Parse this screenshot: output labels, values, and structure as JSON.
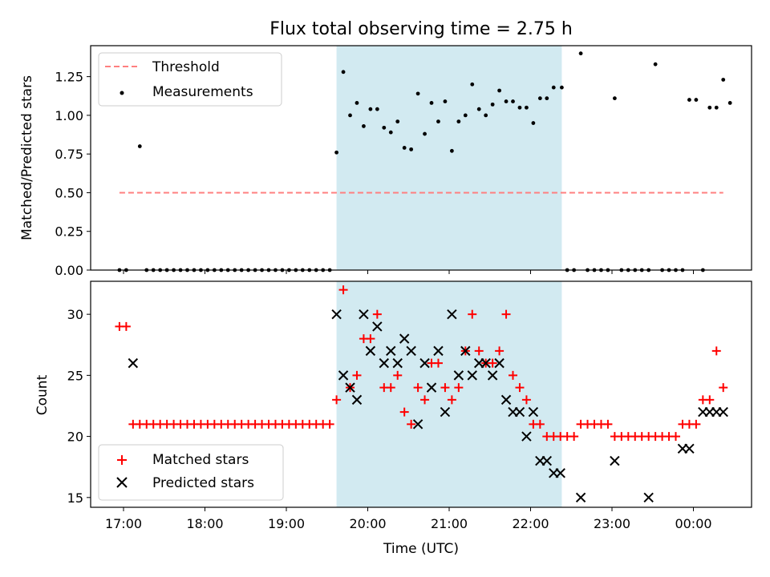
{
  "title": "Flux total observing time = 2.75 h",
  "xlabel": "Time (UTC)",
  "x_ticks": [
    "17:00",
    "18:00",
    "19:00",
    "20:00",
    "21:00",
    "22:00",
    "23:00",
    "00:00"
  ],
  "highlight_span": [
    "19:37",
    "22:23"
  ],
  "colors": {
    "threshold": "#ff7f7f",
    "span": "#add8e6",
    "matched": "#ff0000",
    "predicted": "#000000"
  },
  "chart_data": [
    {
      "type": "scatter",
      "ylabel": "Matched/Predicted stars",
      "ylim": [
        0,
        1.45
      ],
      "y_ticks": [
        "0.00",
        "0.25",
        "0.50",
        "0.75",
        "1.00",
        "1.25"
      ],
      "legend": {
        "placement": "upper-left",
        "entries": [
          "Threshold",
          "Measurements"
        ]
      },
      "threshold": {
        "name": "Threshold",
        "value": 0.5,
        "x_range": [
          "16:57",
          "00:22"
        ]
      },
      "series": [
        {
          "name": "Measurements",
          "points": [
            [
              "16:57",
              0
            ],
            [
              "17:02",
              0
            ],
            [
              "17:12",
              0.8
            ],
            [
              "17:17",
              0
            ],
            [
              "17:22",
              0
            ],
            [
              "17:27",
              0
            ],
            [
              "17:32",
              0
            ],
            [
              "17:37",
              0
            ],
            [
              "17:42",
              0
            ],
            [
              "17:47",
              0
            ],
            [
              "17:52",
              0
            ],
            [
              "17:57",
              0
            ],
            [
              "18:02",
              0
            ],
            [
              "18:07",
              0
            ],
            [
              "18:12",
              0
            ],
            [
              "18:17",
              0
            ],
            [
              "18:22",
              0
            ],
            [
              "18:27",
              0
            ],
            [
              "18:32",
              0
            ],
            [
              "18:37",
              0
            ],
            [
              "18:42",
              0
            ],
            [
              "18:47",
              0
            ],
            [
              "18:52",
              0
            ],
            [
              "18:57",
              0
            ],
            [
              "19:02",
              0
            ],
            [
              "19:07",
              0
            ],
            [
              "19:12",
              0
            ],
            [
              "19:17",
              0
            ],
            [
              "19:22",
              0
            ],
            [
              "19:27",
              0
            ],
            [
              "19:32",
              0
            ],
            [
              "19:37",
              0.76
            ],
            [
              "19:42",
              1.28
            ],
            [
              "19:47",
              1.0
            ],
            [
              "19:52",
              1.08
            ],
            [
              "19:57",
              0.93
            ],
            [
              "20:02",
              1.04
            ],
            [
              "20:07",
              1.04
            ],
            [
              "20:12",
              0.92
            ],
            [
              "20:17",
              0.89
            ],
            [
              "20:22",
              0.96
            ],
            [
              "20:27",
              0.79
            ],
            [
              "20:32",
              0.78
            ],
            [
              "20:37",
              1.14
            ],
            [
              "20:42",
              0.88
            ],
            [
              "20:47",
              1.08
            ],
            [
              "20:52",
              0.96
            ],
            [
              "20:57",
              1.09
            ],
            [
              "21:02",
              0.77
            ],
            [
              "21:07",
              0.96
            ],
            [
              "21:12",
              1.0
            ],
            [
              "21:17",
              1.2
            ],
            [
              "21:22",
              1.04
            ],
            [
              "21:27",
              1.0
            ],
            [
              "21:32",
              1.07
            ],
            [
              "21:37",
              1.16
            ],
            [
              "21:42",
              1.09
            ],
            [
              "21:47",
              1.09
            ],
            [
              "21:52",
              1.05
            ],
            [
              "21:57",
              1.05
            ],
            [
              "22:02",
              0.95
            ],
            [
              "22:07",
              1.11
            ],
            [
              "22:12",
              1.11
            ],
            [
              "22:17",
              1.18
            ],
            [
              "22:23",
              1.18
            ],
            [
              "22:27",
              0
            ],
            [
              "22:32",
              0
            ],
            [
              "22:37",
              1.4
            ],
            [
              "22:42",
              0
            ],
            [
              "22:47",
              0
            ],
            [
              "22:52",
              0
            ],
            [
              "22:57",
              0
            ],
            [
              "23:02",
              1.11
            ],
            [
              "23:07",
              0
            ],
            [
              "23:12",
              0
            ],
            [
              "23:17",
              0
            ],
            [
              "23:22",
              0
            ],
            [
              "23:27",
              0
            ],
            [
              "23:32",
              1.33
            ],
            [
              "23:37",
              0
            ],
            [
              "23:42",
              0
            ],
            [
              "23:47",
              0
            ],
            [
              "23:52",
              0
            ],
            [
              "23:57",
              1.1
            ],
            [
              "00:02",
              1.1
            ],
            [
              "00:07",
              0
            ],
            [
              "00:12",
              1.05
            ],
            [
              "00:17",
              1.05
            ],
            [
              "00:22",
              1.23
            ],
            [
              "00:27",
              1.08
            ]
          ]
        }
      ]
    },
    {
      "type": "scatter",
      "ylabel": "Count",
      "ylim": [
        14.2,
        32.7
      ],
      "y_ticks": [
        "15",
        "20",
        "25",
        "30"
      ],
      "legend": {
        "placement": "lower-left",
        "entries": [
          "Matched stars",
          "Predicted stars"
        ]
      },
      "series": [
        {
          "name": "Matched stars",
          "points": [
            [
              "16:57",
              29
            ],
            [
              "17:02",
              29
            ],
            [
              "17:07",
              21
            ],
            [
              "17:12",
              21
            ],
            [
              "17:17",
              21
            ],
            [
              "17:22",
              21
            ],
            [
              "17:27",
              21
            ],
            [
              "17:32",
              21
            ],
            [
              "17:37",
              21
            ],
            [
              "17:42",
              21
            ],
            [
              "17:47",
              21
            ],
            [
              "17:52",
              21
            ],
            [
              "17:57",
              21
            ],
            [
              "18:02",
              21
            ],
            [
              "18:07",
              21
            ],
            [
              "18:12",
              21
            ],
            [
              "18:17",
              21
            ],
            [
              "18:22",
              21
            ],
            [
              "18:27",
              21
            ],
            [
              "18:32",
              21
            ],
            [
              "18:37",
              21
            ],
            [
              "18:42",
              21
            ],
            [
              "18:47",
              21
            ],
            [
              "18:52",
              21
            ],
            [
              "18:57",
              21
            ],
            [
              "19:02",
              21
            ],
            [
              "19:07",
              21
            ],
            [
              "19:12",
              21
            ],
            [
              "19:17",
              21
            ],
            [
              "19:22",
              21
            ],
            [
              "19:27",
              21
            ],
            [
              "19:32",
              21
            ],
            [
              "19:37",
              23
            ],
            [
              "19:42",
              32
            ],
            [
              "19:47",
              24
            ],
            [
              "19:52",
              25
            ],
            [
              "19:57",
              28
            ],
            [
              "20:02",
              28
            ],
            [
              "20:07",
              30
            ],
            [
              "20:12",
              24
            ],
            [
              "20:17",
              24
            ],
            [
              "20:22",
              25
            ],
            [
              "20:27",
              22
            ],
            [
              "20:32",
              21
            ],
            [
              "20:37",
              24
            ],
            [
              "20:42",
              23
            ],
            [
              "20:47",
              26
            ],
            [
              "20:52",
              26
            ],
            [
              "20:57",
              24
            ],
            [
              "21:02",
              23
            ],
            [
              "21:07",
              24
            ],
            [
              "21:12",
              27
            ],
            [
              "21:17",
              30
            ],
            [
              "21:22",
              27
            ],
            [
              "21:27",
              26
            ],
            [
              "21:32",
              26
            ],
            [
              "21:37",
              27
            ],
            [
              "21:42",
              30
            ],
            [
              "21:47",
              25
            ],
            [
              "21:52",
              24
            ],
            [
              "21:57",
              23
            ],
            [
              "22:02",
              21
            ],
            [
              "22:07",
              21
            ],
            [
              "22:12",
              20
            ],
            [
              "22:17",
              20
            ],
            [
              "22:22",
              20
            ],
            [
              "22:27",
              20
            ],
            [
              "22:32",
              20
            ],
            [
              "22:37",
              21
            ],
            [
              "22:42",
              21
            ],
            [
              "22:47",
              21
            ],
            [
              "22:52",
              21
            ],
            [
              "22:57",
              21
            ],
            [
              "23:02",
              20
            ],
            [
              "23:07",
              20
            ],
            [
              "23:12",
              20
            ],
            [
              "23:17",
              20
            ],
            [
              "23:22",
              20
            ],
            [
              "23:27",
              20
            ],
            [
              "23:32",
              20
            ],
            [
              "23:37",
              20
            ],
            [
              "23:42",
              20
            ],
            [
              "23:47",
              20
            ],
            [
              "23:52",
              21
            ],
            [
              "23:57",
              21
            ],
            [
              "00:02",
              21
            ],
            [
              "00:07",
              23
            ],
            [
              "00:12",
              23
            ],
            [
              "00:17",
              27
            ],
            [
              "00:22",
              24
            ]
          ]
        },
        {
          "name": "Predicted stars",
          "points": [
            [
              "17:07",
              26
            ],
            [
              "19:37",
              30
            ],
            [
              "19:42",
              25
            ],
            [
              "19:47",
              24
            ],
            [
              "19:52",
              23
            ],
            [
              "19:57",
              30
            ],
            [
              "20:02",
              27
            ],
            [
              "20:07",
              29
            ],
            [
              "20:12",
              26
            ],
            [
              "20:17",
              27
            ],
            [
              "20:22",
              26
            ],
            [
              "20:27",
              28
            ],
            [
              "20:32",
              27
            ],
            [
              "20:37",
              21
            ],
            [
              "20:42",
              26
            ],
            [
              "20:47",
              24
            ],
            [
              "20:52",
              27
            ],
            [
              "20:57",
              22
            ],
            [
              "21:02",
              30
            ],
            [
              "21:07",
              25
            ],
            [
              "21:12",
              27
            ],
            [
              "21:17",
              25
            ],
            [
              "21:22",
              26
            ],
            [
              "21:27",
              26
            ],
            [
              "21:32",
              25
            ],
            [
              "21:37",
              26
            ],
            [
              "21:42",
              23
            ],
            [
              "21:47",
              22
            ],
            [
              "21:52",
              22
            ],
            [
              "21:57",
              20
            ],
            [
              "22:02",
              22
            ],
            [
              "22:07",
              18
            ],
            [
              "22:12",
              18
            ],
            [
              "22:17",
              17
            ],
            [
              "22:22",
              17
            ],
            [
              "22:37",
              15
            ],
            [
              "23:02",
              18
            ],
            [
              "23:27",
              15
            ],
            [
              "23:52",
              19
            ],
            [
              "23:57",
              19
            ],
            [
              "00:07",
              22
            ],
            [
              "00:12",
              22
            ],
            [
              "00:17",
              22
            ],
            [
              "00:22",
              22
            ]
          ]
        }
      ]
    }
  ]
}
